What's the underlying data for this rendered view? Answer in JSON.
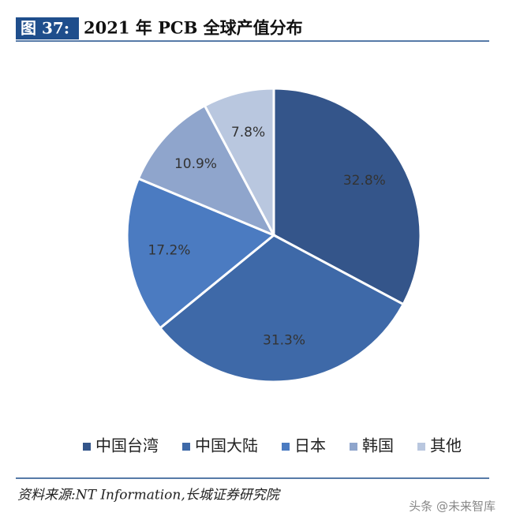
{
  "chart_data": {
    "type": "pie",
    "figure_label": "图 37:",
    "title": "2021 年 PCB 全球产值分布",
    "categories": [
      "中国台湾",
      "中国大陆",
      "日本",
      "韩国",
      "其他"
    ],
    "values": [
      32.8,
      31.3,
      17.2,
      10.9,
      7.8
    ],
    "value_labels": [
      "32.8%",
      "31.3%",
      "17.2%",
      "10.9%",
      "7.8%"
    ],
    "colors": [
      "#34558a",
      "#3e69a8",
      "#4b7bc1",
      "#8fa5cc",
      "#b9c7df"
    ],
    "legend": "bottom"
  },
  "source": "资料来源:NT   Information,长城证券研究院",
  "watermark": "头条 @未来智库"
}
